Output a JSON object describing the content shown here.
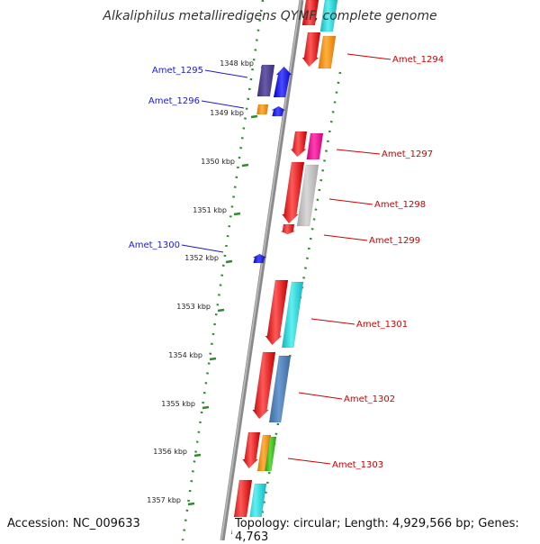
{
  "title": "Alkaliphilus metalliredigens QYMF, complete genome",
  "accession": "Accession: NC_009633",
  "topology": "Topology: circular; Length: 4,929,566 bp; Genes: 4,763",
  "ticks": [
    "1348 kbp",
    "1349 kbp",
    "1350 kbp",
    "1351 kbp",
    "1352 kbp",
    "1353 kbp",
    "1354 kbp",
    "1355 kbp",
    "1356 kbp",
    "1357 kbp"
  ],
  "gene_labels": [
    {
      "text": "Amet_1294",
      "color": "#cc0000"
    },
    {
      "text": "Amet_1295",
      "color": "#1a1acc"
    },
    {
      "text": "Amet_1296",
      "color": "#1a1acc"
    },
    {
      "text": "Amet_1297",
      "color": "#cc0000"
    },
    {
      "text": "Amet_1298",
      "color": "#cc0000"
    },
    {
      "text": "Amet_1299",
      "color": "#cc0000"
    },
    {
      "text": "Amet_1300",
      "color": "#1a1acc"
    },
    {
      "text": "Amet_1301",
      "color": "#cc0000"
    },
    {
      "text": "Amet_1302",
      "color": "#cc0000"
    },
    {
      "text": "Amet_1303",
      "color": "#cc0000"
    }
  ],
  "colors": {
    "backbone": "#888888",
    "ring_dots": "#2e8b2e",
    "tick": "#2e8b2e",
    "forward_gene": "#ee1111",
    "reverse_gene": "#1111ee"
  }
}
